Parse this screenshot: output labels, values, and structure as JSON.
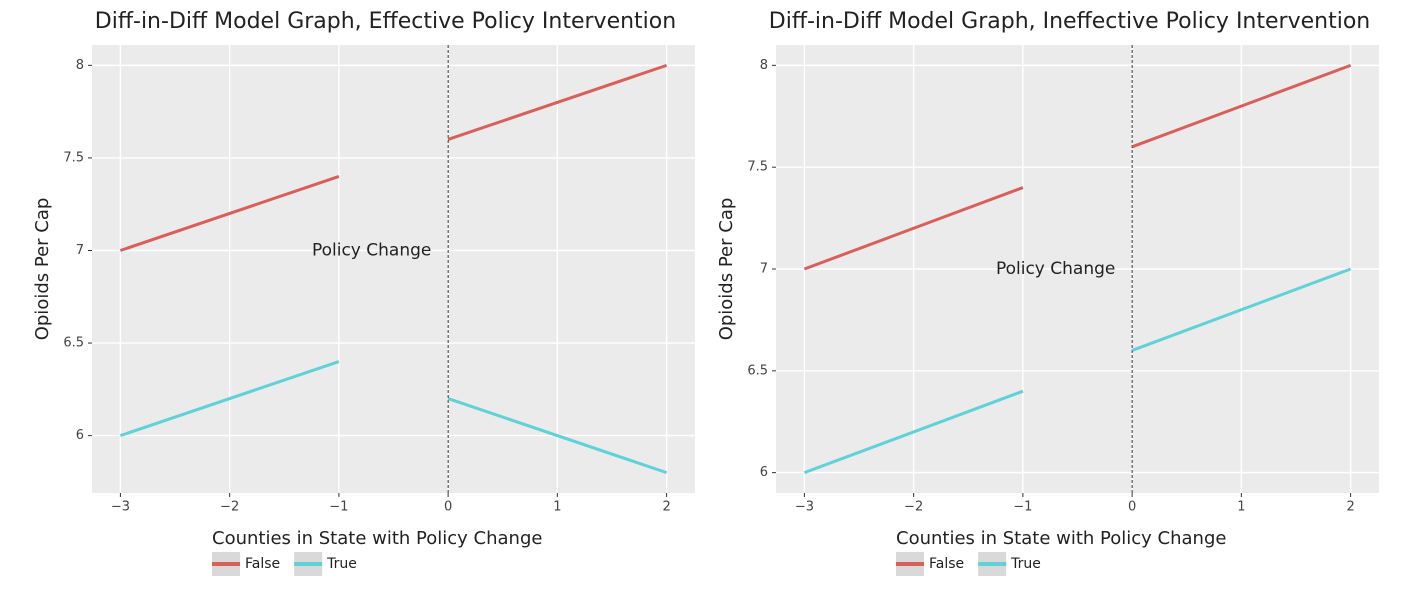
{
  "chart_data": [
    {
      "type": "line",
      "title": "Diff-in-Diff Model Graph, Effective Policy Intervention",
      "ylabel": "Opioids Per Cap",
      "legend_title": "Counties in State with Policy Change",
      "legend": "bottom",
      "grid": true,
      "annotation": {
        "text": "Policy Change",
        "x": -0.7,
        "y": 7
      },
      "vline": 0,
      "xlim": [
        -3.26,
        2.26
      ],
      "xticks": [
        {
          "value": -3,
          "label": "−3"
        },
        {
          "value": -2,
          "label": "−2"
        },
        {
          "value": -1,
          "label": "−1"
        },
        0,
        1,
        2
      ],
      "ylim": [
        5.69,
        8.11
      ],
      "yticks": [
        6,
        6.5,
        7,
        7.5,
        8
      ],
      "series": [
        {
          "name": "False",
          "color": "#d9605a",
          "x": [
            -3,
            -1,
            null,
            0,
            2
          ],
          "values": [
            7,
            7.4,
            null,
            7.6,
            8
          ]
        },
        {
          "name": "True",
          "color": "#5ed2d7",
          "x": [
            -3,
            -1,
            null,
            0,
            2
          ],
          "values": [
            6,
            6.4,
            null,
            6.2,
            5.8
          ]
        }
      ]
    },
    {
      "type": "line",
      "title": "Diff-in-Diff Model Graph, Ineffective Policy Intervention",
      "ylabel": "Opioids Per Cap",
      "legend_title": "Counties in State with Policy Change",
      "legend": "bottom",
      "grid": true,
      "annotation": {
        "text": "Policy Change",
        "x": -0.7,
        "y": 7
      },
      "vline": 0,
      "xlim": [
        -3.26,
        2.26
      ],
      "xticks": [
        {
          "value": -3,
          "label": "−3"
        },
        {
          "value": -2,
          "label": "−2"
        },
        {
          "value": -1,
          "label": "−1"
        },
        0,
        1,
        2
      ],
      "ylim": [
        5.9,
        8.1
      ],
      "yticks": [
        6,
        6.5,
        7,
        7.5,
        8
      ],
      "series": [
        {
          "name": "False",
          "color": "#d9605a",
          "x": [
            -3,
            -1,
            null,
            0,
            2
          ],
          "values": [
            7,
            7.4,
            null,
            7.6,
            8
          ]
        },
        {
          "name": "True",
          "color": "#5ed2d7",
          "x": [
            -3,
            -1,
            null,
            0,
            2
          ],
          "values": [
            6,
            6.4,
            null,
            6.6,
            7
          ]
        }
      ]
    }
  ]
}
